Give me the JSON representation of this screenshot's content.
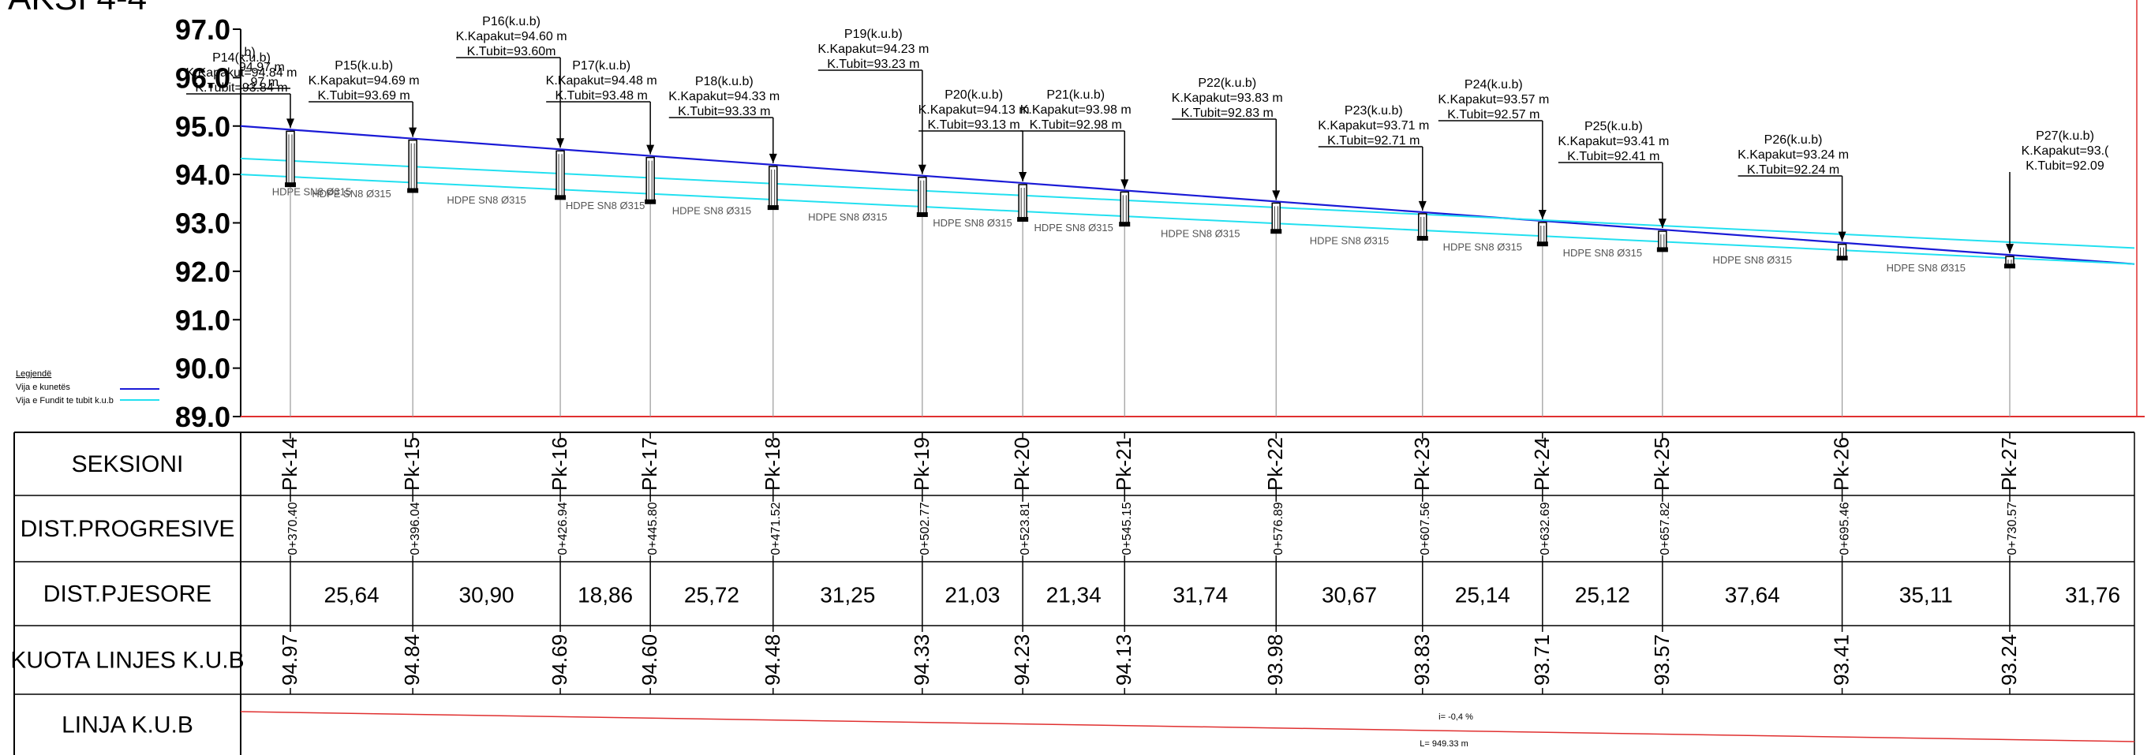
{
  "title": "AKSI 4-4",
  "y_axis": {
    "min": 89.0,
    "max": 97.0,
    "ticks": [
      "97.0",
      "96.0",
      "95.0",
      "94.0",
      "93.0",
      "92.0",
      "91.0",
      "90.0",
      "89.0"
    ]
  },
  "legend": {
    "heading": "Legjendë",
    "items": [
      {
        "label": "Vija e kunetës",
        "color": "#1a1ad6"
      },
      {
        "label": "Vija e Fundit te tubit k.u.b",
        "color": "#22e0f0"
      }
    ]
  },
  "colors": {
    "axis_red": "#e03030",
    "terrain_blue": "#1a1ad6",
    "pipe_cyan": "#22e0f0",
    "kuota_text": "#1a1ad6",
    "kub_line": "#e03030"
  },
  "pipe_label": "HDPE SN8 Ø315",
  "pipe_segments": [
    {
      "text": "HDPE SN8 Ø315"
    },
    {
      "text": "HDPE SN8 Ø315"
    },
    {
      "text": "HDPE SN8 Ø315"
    },
    {
      "text": "HDPE SN8 Ø315"
    },
    {
      "text": "HDPE SN8 Ø315"
    },
    {
      "text": "HDPE SN8 Ø315"
    },
    {
      "text": "HDPE SN8 Ø315"
    },
    {
      "text": "HDPE SN8 Ø315"
    },
    {
      "text": "HDPE SN8 Ø315"
    },
    {
      "text": "HDPE SN8 Ø315"
    },
    {
      "text": "HDPE SN8 Ø315"
    },
    {
      "text": "HDPE SN8 Ø315"
    },
    {
      "text": "HDPE SN8 Ø315"
    },
    {
      "text": "HDPE SN8 Ø315"
    }
  ],
  "partial_left_label": {
    "name": ".b)",
    "kapakut": "94.97 m",
    "tubit": ".97 m"
  },
  "wells": [
    {
      "name": "P14(k.u.b)",
      "kapakut": "K.Kapakut=94.84 m",
      "tubit": "K.Tubit=93.84 m"
    },
    {
      "name": "P15(k.u.b)",
      "kapakut": "K.Kapakut=94.69 m",
      "tubit": "K.Tubit=93.69 m"
    },
    {
      "name": "P16(k.u.b)",
      "kapakut": "K.Kapakut=94.60 m",
      "tubit": "K.Tubit=93.60m"
    },
    {
      "name": "P17(k.u.b)",
      "kapakut": "K.Kapakut=94.48 m",
      "tubit": "K.Tubit=93.48 m"
    },
    {
      "name": "P18(k.u.b)",
      "kapakut": "K.Kapakut=94.33 m",
      "tubit": "K.Tubit=93.33 m"
    },
    {
      "name": "P19(k.u.b)",
      "kapakut": "K.Kapakut=94.23 m",
      "tubit": "K.Tubit=93.23 m"
    },
    {
      "name": "P20(k.u.b)",
      "kapakut": "K.Kapakut=94.13 m",
      "tubit": "K.Tubit=93.13 m"
    },
    {
      "name": "P21(k.u.b)",
      "kapakut": "K.Kapakut=93.98 m",
      "tubit": "K.Tubit=92.98 m"
    },
    {
      "name": "P22(k.u.b)",
      "kapakut": "K.Kapakut=93.83 m",
      "tubit": "K.Tubit=92.83 m"
    },
    {
      "name": "P23(k.u.b)",
      "kapakut": "K.Kapakut=93.71 m",
      "tubit": "K.Tubit=92.71 m"
    },
    {
      "name": "P24(k.u.b)",
      "kapakut": "K.Kapakut=93.57 m",
      "tubit": "K.Tubit=92.57 m"
    },
    {
      "name": "P25(k.u.b)",
      "kapakut": "K.Kapakut=93.41 m",
      "tubit": "K.Tubit=92.41 m"
    },
    {
      "name": "P26(k.u.b)",
      "kapakut": "K.Kapakut=93.24 m",
      "tubit": "K.Tubit=92.24 m"
    },
    {
      "name": "P27(k.u.b)",
      "kapakut": "K.Kapakut=93.(",
      "tubit": "K.Tubit=92.09"
    }
  ],
  "table": {
    "row_headers": [
      "SEKSIONI",
      "DIST.PROGRESIVE",
      "DIST.PJESORE",
      "KUOTA LINJES K.U.B",
      "LINJA  K.U.B"
    ],
    "sections": [
      {
        "pk": "Pk-14",
        "prog": "0+370.40",
        "kuota": "94.97"
      },
      {
        "pk": "Pk-15",
        "prog": "0+396.04",
        "kuota": "94.84"
      },
      {
        "pk": "Pk-16",
        "prog": "0+426.94",
        "kuota": "94.69"
      },
      {
        "pk": "Pk-17",
        "prog": "0+445.80",
        "kuota": "94.60"
      },
      {
        "pk": "Pk-18",
        "prog": "0+471.52",
        "kuota": "94.48"
      },
      {
        "pk": "Pk-19",
        "prog": "0+502.77",
        "kuota": "94.33"
      },
      {
        "pk": "Pk-20",
        "prog": "0+523.81",
        "kuota": "94.23"
      },
      {
        "pk": "Pk-21",
        "prog": "0+545.15",
        "kuota": "94.13"
      },
      {
        "pk": "Pk-22",
        "prog": "0+576.89",
        "kuota": "93.98"
      },
      {
        "pk": "Pk-23",
        "prog": "0+607.56",
        "kuota": "93.83"
      },
      {
        "pk": "Pk-24",
        "prog": "0+632.69",
        "kuota": "93.71"
      },
      {
        "pk": "Pk-25",
        "prog": "0+657.82",
        "kuota": "93.57"
      },
      {
        "pk": "Pk-26",
        "prog": "0+695.46",
        "kuota": "93.41"
      },
      {
        "pk": "Pk-27",
        "prog": "0+730.57",
        "kuota": "93.24"
      }
    ],
    "pjesore": [
      "25,64",
      "30,90",
      "18,86",
      "25,72",
      "31,25",
      "21,03",
      "21,34",
      "31,74",
      "30,67",
      "25,14",
      "25,12",
      "37,64",
      "35,11",
      "31,76"
    ],
    "slope_label": "i= -0,4 %",
    "length_label": "L= 949.33 m"
  }
}
